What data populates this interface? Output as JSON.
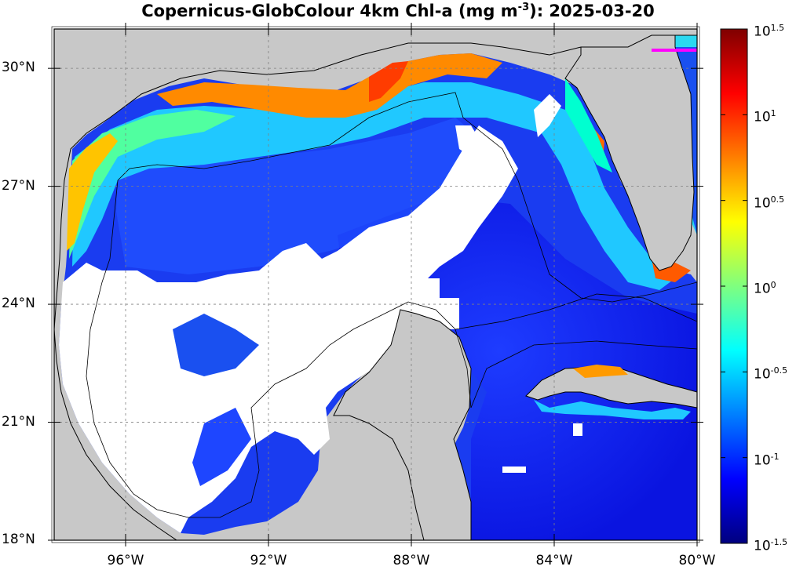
{
  "title": {
    "text": "Copernicus-GlobColour 4km Chl-a (mg m",
    "exponent": "-3",
    "date": "): 2025-03-20"
  },
  "map": {
    "lon_range": [
      -98,
      -80
    ],
    "lat_range": [
      18,
      31
    ],
    "land_color": "#c8c8c8",
    "no_data_color": "#ffffff",
    "lat_ticks": [
      {
        "value": 30,
        "label": "30°N"
      },
      {
        "value": 27,
        "label": "27°N"
      },
      {
        "value": 24,
        "label": "24°N"
      },
      {
        "value": 21,
        "label": "21°N"
      },
      {
        "value": 18,
        "label": "18°N"
      }
    ],
    "lon_ticks": [
      {
        "value": -96,
        "label": "96°W"
      },
      {
        "value": -92,
        "label": "92°W"
      },
      {
        "value": -88,
        "label": "88°W"
      },
      {
        "value": -84,
        "label": "84°W"
      },
      {
        "value": -80,
        "label": "80°W"
      }
    ],
    "gridlines": "dashed",
    "variable": "Chl-a",
    "units": "mg m-3"
  },
  "colorbar": {
    "scale": "log10",
    "range": [
      -1.5,
      1.5
    ],
    "colors": [
      "#00007f",
      "#0000ff",
      "#007fff",
      "#00ffff",
      "#7fff7f",
      "#ffff00",
      "#ff7f00",
      "#ff0000",
      "#7f0000"
    ],
    "ticks": [
      {
        "base": "10",
        "exp": "1.5"
      },
      {
        "base": "10",
        "exp": "1"
      },
      {
        "base": "10",
        "exp": "0.5"
      },
      {
        "base": "10",
        "exp": "0"
      },
      {
        "base": "10",
        "exp": "-0.5"
      },
      {
        "base": "10",
        "exp": "-1"
      },
      {
        "base": "10",
        "exp": "-1.5"
      }
    ]
  }
}
